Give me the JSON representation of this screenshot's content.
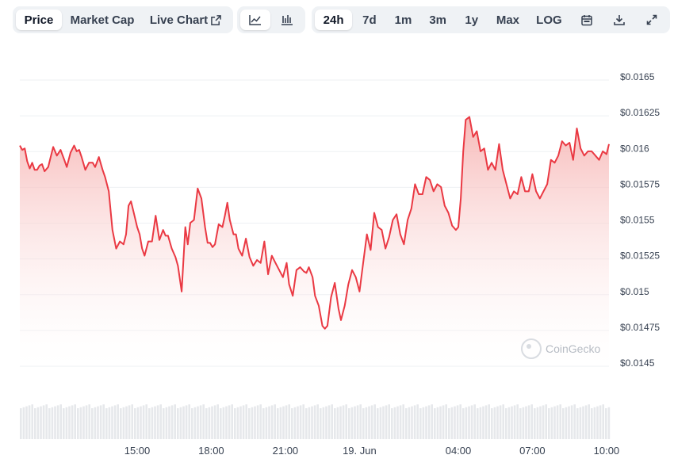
{
  "toolbar": {
    "tabs": {
      "price": "Price",
      "market_cap": "Market Cap",
      "live_chart": "Live Chart"
    },
    "ranges": {
      "r24h": "24h",
      "r7d": "7d",
      "r1m": "1m",
      "r3m": "3m",
      "r1y": "1y",
      "rmax": "Max",
      "log": "LOG"
    },
    "icons": [
      "line-chart-icon",
      "candlestick-icon",
      "calendar-icon",
      "download-icon",
      "expand-icon"
    ]
  },
  "watermark": "CoinGecko",
  "colors": {
    "line": "#ea3943",
    "fill_top": "#f6b1b0",
    "grid": "#eef0f3",
    "volume": "#e6e8eb"
  },
  "chart_data": {
    "type": "area",
    "y_tick_labels": [
      "$0.0165",
      "$0.01625",
      "$0.016",
      "$0.01575",
      "$0.0155",
      "$0.01525",
      "$0.015",
      "$0.01475",
      "$0.0145"
    ],
    "y_ticks": [
      0.0165,
      0.01625,
      0.016,
      0.01575,
      0.0155,
      0.01525,
      0.015,
      0.01475,
      0.0145
    ],
    "ylim": [
      0.0145,
      0.0165
    ],
    "x_tick_labels": [
      "15:00",
      "18:00",
      "21:00",
      "19. Jun",
      "04:00",
      "07:00",
      "10:00"
    ],
    "x_ticks": [
      15,
      18,
      21,
      24,
      28,
      31,
      34
    ],
    "x_range": [
      10.25,
      34.1
    ],
    "grid": true,
    "series": [
      {
        "x": [
          10.25,
          10.35,
          10.45,
          10.55,
          10.65,
          10.75,
          10.85,
          10.95,
          11.05,
          11.15,
          11.25,
          11.4,
          11.5,
          11.6,
          11.75,
          11.9,
          12.05,
          12.15,
          12.3,
          12.45,
          12.55,
          12.65,
          12.75,
          12.9,
          13.05,
          13.2,
          13.3,
          13.45,
          13.6,
          13.7,
          13.85,
          14.0,
          14.15,
          14.3,
          14.45,
          14.55,
          14.65,
          14.75,
          14.85,
          15.0,
          15.1,
          15.2,
          15.3,
          15.45,
          15.6,
          15.75,
          15.9,
          16.05,
          16.15,
          16.25,
          16.4,
          16.55,
          16.65,
          16.8,
          16.95,
          17.05,
          17.15,
          17.3,
          17.45,
          17.6,
          17.75,
          17.85,
          17.95,
          18.05,
          18.15,
          18.3,
          18.45,
          18.55,
          18.65,
          18.75,
          18.9,
          19.0,
          19.1,
          19.25,
          19.4,
          19.55,
          19.7,
          19.85,
          20.0,
          20.15,
          20.3,
          20.45,
          20.6,
          20.75,
          20.9,
          21.05,
          21.15,
          21.3,
          21.45,
          21.6,
          21.75,
          21.85,
          21.95,
          22.1,
          22.2,
          22.35,
          22.5,
          22.6,
          22.7,
          22.85,
          23.0,
          23.15,
          23.25,
          23.4,
          23.55,
          23.7,
          23.85,
          24.0,
          24.15,
          24.3,
          24.45,
          24.6,
          24.75,
          24.9,
          25.05,
          25.2,
          25.35,
          25.5,
          25.65,
          25.8,
          25.95,
          26.1,
          26.25,
          26.4,
          26.55,
          26.7,
          26.85,
          27.0,
          27.15,
          27.3,
          27.45,
          27.6,
          27.75,
          27.9,
          28.0,
          28.1,
          28.2,
          28.3,
          28.45,
          28.6,
          28.75,
          28.9,
          29.05,
          29.2,
          29.35,
          29.5,
          29.65,
          29.8,
          29.95,
          30.1,
          30.25,
          30.4,
          30.55,
          30.7,
          30.85,
          31.0,
          31.15,
          31.3,
          31.45,
          31.6,
          31.75,
          31.9,
          32.05,
          32.2,
          32.35,
          32.5,
          32.65,
          32.8,
          32.95,
          33.1,
          33.25,
          33.4,
          33.55,
          33.7,
          33.85,
          34.0,
          34.1
        ],
        "values": [
          0.01602,
          0.01599,
          0.016,
          0.01591,
          0.01586,
          0.0159,
          0.01585,
          0.01585,
          0.01588,
          0.01589,
          0.01584,
          0.01587,
          0.01594,
          0.01601,
          0.01595,
          0.01599,
          0.01592,
          0.01587,
          0.01597,
          0.01602,
          0.01598,
          0.01599,
          0.01594,
          0.01585,
          0.0159,
          0.0159,
          0.01587,
          0.01594,
          0.01585,
          0.0158,
          0.0157,
          0.01543,
          0.0153,
          0.01535,
          0.01533,
          0.0154,
          0.0156,
          0.01563,
          0.01556,
          0.01545,
          0.0154,
          0.0153,
          0.01525,
          0.01535,
          0.01535,
          0.01553,
          0.01536,
          0.01543,
          0.01539,
          0.01539,
          0.0153,
          0.01524,
          0.01518,
          0.015,
          0.01545,
          0.01533,
          0.01548,
          0.0155,
          0.01572,
          0.01565,
          0.01545,
          0.01534,
          0.01534,
          0.01531,
          0.01533,
          0.01547,
          0.01545,
          0.01553,
          0.01562,
          0.0155,
          0.0154,
          0.0154,
          0.0153,
          0.01525,
          0.01537,
          0.01524,
          0.01518,
          0.01522,
          0.0152,
          0.01535,
          0.01512,
          0.01525,
          0.0152,
          0.01515,
          0.0151,
          0.0152,
          0.01505,
          0.01497,
          0.01515,
          0.01517,
          0.01514,
          0.01513,
          0.01517,
          0.0151,
          0.01497,
          0.0149,
          0.01476,
          0.01474,
          0.01476,
          0.01496,
          0.01506,
          0.01488,
          0.0148,
          0.0149,
          0.01505,
          0.01515,
          0.0151,
          0.015,
          0.0152,
          0.0154,
          0.01529,
          0.01555,
          0.01545,
          0.01543,
          0.0153,
          0.01538,
          0.0155,
          0.01554,
          0.0154,
          0.01533,
          0.0155,
          0.01558,
          0.01575,
          0.01568,
          0.01568,
          0.0158,
          0.01578,
          0.0157,
          0.01575,
          0.01573,
          0.0156,
          0.01555,
          0.01546,
          0.01543,
          0.01545,
          0.01565,
          0.01598,
          0.0162,
          0.01622,
          0.01608,
          0.01612,
          0.01598,
          0.016,
          0.01585,
          0.0159,
          0.01585,
          0.01603,
          0.01585,
          0.01575,
          0.01565,
          0.0157,
          0.01568,
          0.0158,
          0.0157,
          0.0157,
          0.01582,
          0.0157,
          0.01565,
          0.0157,
          0.01575,
          0.01592,
          0.0159,
          0.01595,
          0.01605,
          0.01602,
          0.01604,
          0.01592,
          0.01614,
          0.016,
          0.01595,
          0.01598,
          0.01598,
          0.01595,
          0.01592,
          0.01598,
          0.01596,
          0.01603
        ]
      }
    ]
  }
}
